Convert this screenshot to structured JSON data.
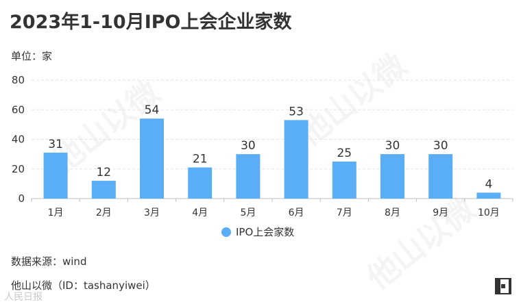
{
  "title": "2023年1-10月IPO上会企业家数",
  "unit_label": "单位：家",
  "source_label": "数据来源：wind",
  "credit_label": "他山以微（ID：tashanyiwei）",
  "corner_watermark": "人民日报",
  "watermark_text": "他山以微",
  "colors": {
    "bar": "#5aaef5",
    "axis": "#bfbfbf",
    "grid": "#e3e3e3",
    "text": "#333333"
  },
  "chart_data": {
    "type": "bar",
    "title": "2023年1-10月IPO上会企业家数",
    "categories": [
      "1月",
      "2月",
      "3月",
      "4月",
      "5月",
      "6月",
      "7月",
      "8月",
      "9月",
      "10月"
    ],
    "series": [
      {
        "name": "IPO上会家数",
        "values": [
          31,
          12,
          54,
          21,
          30,
          53,
          25,
          30,
          30,
          4
        ]
      }
    ],
    "ylim": [
      0,
      80
    ],
    "yticks": [
      0,
      20,
      40,
      60,
      80
    ],
    "xlabel": "",
    "ylabel": "",
    "grid": true,
    "data_labels": true,
    "legend": "bottom-center"
  }
}
